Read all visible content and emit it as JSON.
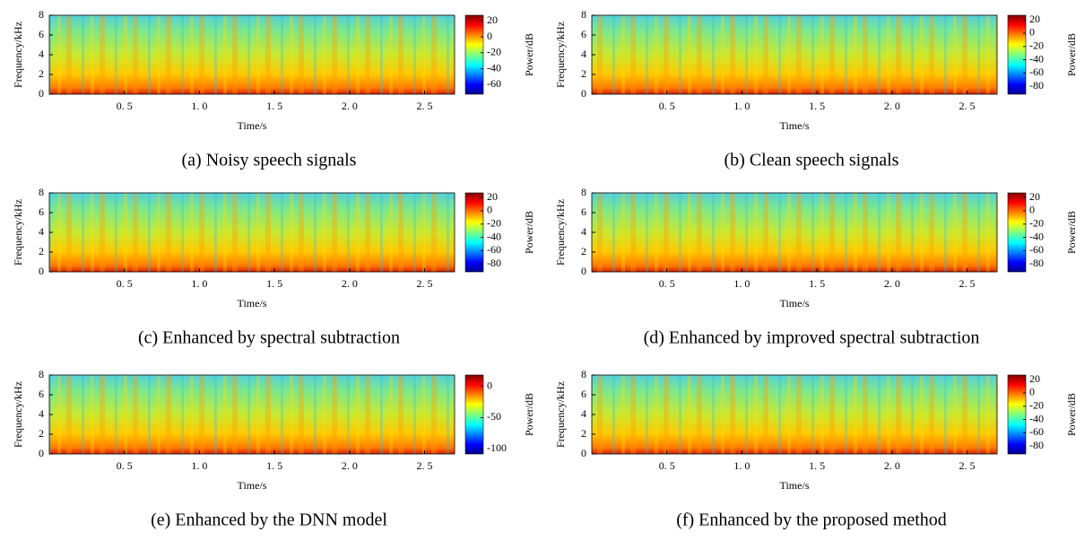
{
  "chart_data": [
    {
      "type": "spectrogram",
      "caption": "(a) Noisy speech signals",
      "xlabel": "Time/s",
      "ylabel": "Frequency/kHz",
      "colorbar_label": "Power/dB",
      "xlim": [
        0,
        2.7
      ],
      "xticks": [
        {
          "value": 0.5,
          "label": "0. 5"
        },
        {
          "value": 1.0,
          "label": "1. 0"
        },
        {
          "value": 1.5,
          "label": "1. 5"
        },
        {
          "value": 2.0,
          "label": "2. 0"
        },
        {
          "value": 2.5,
          "label": "2. 5"
        }
      ],
      "ylim": [
        0,
        8
      ],
      "yticks": [
        0,
        2,
        4,
        6,
        8
      ],
      "clim": [
        -72,
        27
      ],
      "cticks": [
        20,
        0,
        -20,
        -40,
        -60
      ]
    },
    {
      "type": "spectrogram",
      "caption": "(b) Clean speech signals",
      "xlabel": "Time/s",
      "ylabel": "Frequency/kHz",
      "colorbar_label": "Power/dB",
      "xlim": [
        0,
        2.7
      ],
      "xticks": [
        {
          "value": 0.5,
          "label": "0. 5"
        },
        {
          "value": 1.0,
          "label": "1. 0"
        },
        {
          "value": 1.5,
          "label": "1. 5"
        },
        {
          "value": 2.0,
          "label": "2. 0"
        },
        {
          "value": 2.5,
          "label": "2. 5"
        }
      ],
      "ylim": [
        0,
        8
      ],
      "yticks": [
        0,
        2,
        4,
        6,
        8
      ],
      "clim": [
        -92,
        27
      ],
      "cticks": [
        20,
        0,
        -20,
        -40,
        -60,
        -80
      ]
    },
    {
      "type": "spectrogram",
      "caption": "(c) Enhanced by spectral subtraction",
      "xlabel": "Time/s",
      "ylabel": "Frequency/kHz",
      "colorbar_label": "Power/dB",
      "xlim": [
        0,
        2.7
      ],
      "xticks": [
        {
          "value": 0.5,
          "label": "0. 5"
        },
        {
          "value": 1.0,
          "label": "1. 0"
        },
        {
          "value": 1.5,
          "label": "1. 5"
        },
        {
          "value": 2.0,
          "label": "2. 0"
        },
        {
          "value": 2.5,
          "label": "2. 5"
        }
      ],
      "ylim": [
        0,
        8
      ],
      "yticks": [
        0,
        2,
        4,
        6,
        8
      ],
      "clim": [
        -92,
        27
      ],
      "cticks": [
        20,
        0,
        -20,
        -40,
        -60,
        -80
      ]
    },
    {
      "type": "spectrogram",
      "caption": "(d) Enhanced by improved spectral subtraction",
      "xlabel": "Time/s",
      "ylabel": "Frequency/kHz",
      "colorbar_label": "Power/dB",
      "xlim": [
        0,
        2.7
      ],
      "xticks": [
        {
          "value": 0.5,
          "label": "0. 5"
        },
        {
          "value": 1.0,
          "label": "1. 0"
        },
        {
          "value": 1.5,
          "label": "1. 5"
        },
        {
          "value": 2.0,
          "label": "2. 0"
        },
        {
          "value": 2.5,
          "label": "2. 5"
        }
      ],
      "ylim": [
        0,
        8
      ],
      "yticks": [
        0,
        2,
        4,
        6,
        8
      ],
      "clim": [
        -92,
        27
      ],
      "cticks": [
        20,
        0,
        -20,
        -40,
        -60,
        -80
      ]
    },
    {
      "type": "spectrogram",
      "caption": "(e) Enhanced by the DNN model",
      "xlabel": "Time/s",
      "ylabel": "Frequency/kHz",
      "colorbar_label": "Power/dB",
      "xlim": [
        0,
        2.7
      ],
      "xticks": [
        {
          "value": 0.5,
          "label": "0. 5"
        },
        {
          "value": 1.0,
          "label": "1. 0"
        },
        {
          "value": 1.5,
          "label": "1. 5"
        },
        {
          "value": 2.0,
          "label": "2. 0"
        },
        {
          "value": 2.5,
          "label": "2. 5"
        }
      ],
      "ylim": [
        0,
        8
      ],
      "yticks": [
        0,
        2,
        4,
        6,
        8
      ],
      "clim": [
        -108,
        18
      ],
      "cticks": [
        0,
        -50,
        -100
      ]
    },
    {
      "type": "spectrogram",
      "caption": "(f) Enhanced by the proposed method",
      "xlabel": "Time/s",
      "ylabel": "Frequency/kHz",
      "colorbar_label": "Power/dB",
      "xlim": [
        0,
        2.7
      ],
      "xticks": [
        {
          "value": 0.5,
          "label": "0. 5"
        },
        {
          "value": 1.0,
          "label": "1. 0"
        },
        {
          "value": 1.5,
          "label": "1. 5"
        },
        {
          "value": 2.0,
          "label": "2. 0"
        },
        {
          "value": 2.5,
          "label": "2. 5"
        }
      ],
      "ylim": [
        0,
        8
      ],
      "yticks": [
        0,
        2,
        4,
        6,
        8
      ],
      "clim": [
        -92,
        27
      ],
      "cticks": [
        20,
        0,
        -20,
        -40,
        -60,
        -80
      ]
    }
  ]
}
